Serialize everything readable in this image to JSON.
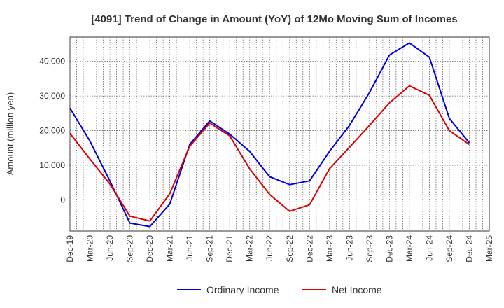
{
  "chart_data": {
    "type": "line",
    "title": "[4091]  Trend of Change in Amount (YoY) of 12Mo Moving Sum of Incomes",
    "xlabel": "",
    "ylabel": "Amount (million yen)",
    "ylim": [
      -9000,
      47000
    ],
    "yticks": [
      0,
      10000,
      20000,
      30000,
      40000
    ],
    "ytick_labels": [
      "0",
      "10,000",
      "20,000",
      "30,000",
      "40,000"
    ],
    "grid": true,
    "legend_position": "bottom-center",
    "categories": [
      "Dec-19",
      "Mar-20",
      "Jun-20",
      "Sep-20",
      "Dec-20",
      "Mar-21",
      "Jun-21",
      "Sep-21",
      "Dec-21",
      "Mar-22",
      "Jun-22",
      "Sep-22",
      "Dec-22",
      "Mar-23",
      "Jun-23",
      "Sep-23",
      "Dec-23",
      "Mar-24",
      "Jun-24",
      "Sep-24",
      "Dec-24",
      "Mar-25"
    ],
    "series": [
      {
        "name": "Ordinary Income",
        "color": "#0000dd",
        "values": [
          26500,
          17000,
          5500,
          -6700,
          -7700,
          -1200,
          16000,
          22800,
          19000,
          14000,
          6700,
          4400,
          5500,
          14000,
          21500,
          31000,
          41800,
          45300,
          41200,
          23500,
          16500,
          null
        ]
      },
      {
        "name": "Net Income",
        "color": "#dd0000",
        "values": [
          19200,
          11800,
          4600,
          -4700,
          -6100,
          1800,
          15500,
          22200,
          18500,
          9000,
          1600,
          -3300,
          -1400,
          9000,
          15200,
          21500,
          28000,
          32900,
          30200,
          20000,
          16000,
          null
        ]
      }
    ]
  }
}
